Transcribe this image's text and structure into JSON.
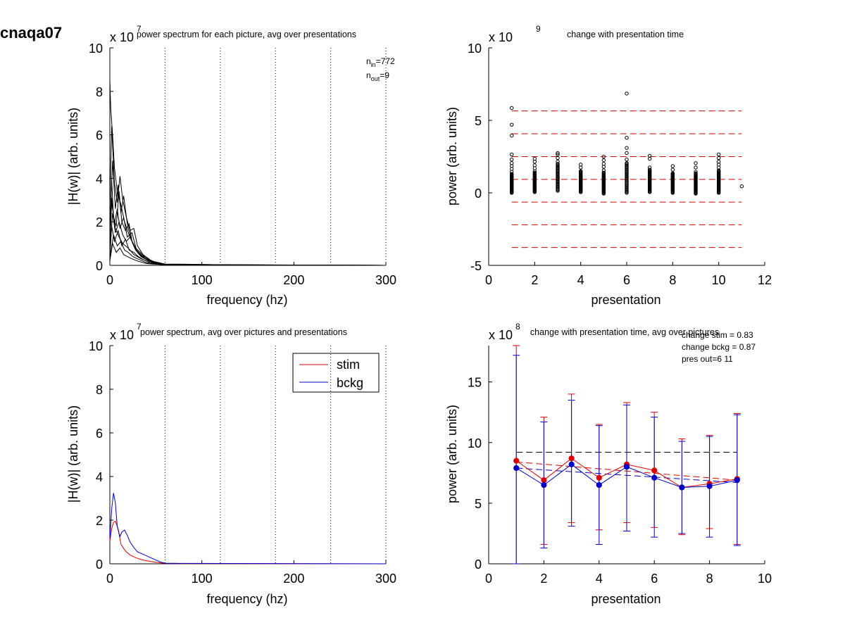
{
  "figure_title": "cnaqa07",
  "chart_data": [
    {
      "id": "p1",
      "type": "line",
      "title": "power spectrum for each picture, avg over presentations",
      "xlabel": "frequency (hz)",
      "ylabel": "|H(w)| (arb. units)",
      "exponent_base": "x 10",
      "exponent_power": "7",
      "xlim": [
        0,
        300
      ],
      "ylim": [
        0,
        10
      ],
      "xticks": [
        "0",
        "100",
        "200",
        "300"
      ],
      "yticks": [
        "0",
        "2",
        "4",
        "6",
        "8",
        "10"
      ],
      "vlines": [
        60,
        120,
        180,
        240,
        300
      ],
      "annotation": {
        "n_in": "772",
        "n_out": "9"
      },
      "note": "many overlapping traces (one per picture); peaks mostly 1-4 x10^7 below 20 Hz, max about 8.5 x10^7 near 3 Hz, decaying to ~0 by 60 Hz",
      "series": [
        {
          "color": "#000000",
          "x": [
            0,
            1,
            3,
            5,
            8,
            12,
            16,
            20,
            25,
            30,
            40,
            50,
            60,
            80,
            100,
            120,
            160,
            200,
            250,
            300
          ],
          "y": [
            8.5,
            7.2,
            6.0,
            4.5,
            3.4,
            2.8,
            2.0,
            1.5,
            1.0,
            0.6,
            0.25,
            0.12,
            0.05,
            0.03,
            0.03,
            0.02,
            0.01,
            0,
            0,
            0
          ]
        },
        {
          "color": "#000000",
          "x": [
            0,
            2,
            5,
            8,
            11,
            14,
            18,
            22,
            26,
            30,
            36,
            44,
            52,
            60,
            100,
            150,
            300
          ],
          "y": [
            2.6,
            6.4,
            3.8,
            2.9,
            4.1,
            3.0,
            2.2,
            1.6,
            1.7,
            0.9,
            0.5,
            0.25,
            0.1,
            0.04,
            0.04,
            0.01,
            0
          ]
        },
        {
          "color": "#000000",
          "x": [
            0,
            3,
            6,
            9,
            12,
            15,
            19,
            23,
            28,
            33,
            40,
            50,
            60,
            100,
            300
          ],
          "y": [
            1.8,
            4.8,
            2.6,
            3.7,
            2.4,
            3.2,
            1.9,
            1.2,
            0.8,
            0.6,
            0.3,
            0.1,
            0.05,
            0.03,
            0
          ]
        },
        {
          "color": "#000000",
          "x": [
            0,
            2,
            4,
            7,
            10,
            13,
            17,
            21,
            24,
            28,
            34,
            42,
            50,
            60,
            300
          ],
          "y": [
            1.2,
            3.9,
            2.2,
            1.8,
            3.4,
            2.0,
            1.6,
            1.9,
            1.1,
            0.7,
            0.4,
            0.2,
            0.08,
            0.03,
            0
          ]
        },
        {
          "color": "#000000",
          "x": [
            0,
            2,
            5,
            8,
            11,
            15,
            19,
            24,
            29,
            35,
            45,
            60,
            90,
            130,
            300
          ],
          "y": [
            0.8,
            3.1,
            1.9,
            2.6,
            1.7,
            2.2,
            1.3,
            1.5,
            0.7,
            0.45,
            0.2,
            0.06,
            0.05,
            0.02,
            0
          ]
        },
        {
          "color": "#000000",
          "x": [
            0,
            3,
            6,
            10,
            14,
            18,
            22,
            27,
            32,
            38,
            46,
            60,
            300
          ],
          "y": [
            0.6,
            2.4,
            1.5,
            2.0,
            1.4,
            1.1,
            1.3,
            0.8,
            0.5,
            0.3,
            0.15,
            0.04,
            0
          ]
        },
        {
          "color": "#000000",
          "x": [
            0,
            2,
            5,
            9,
            13,
            17,
            21,
            26,
            31,
            37,
            45,
            60,
            300
          ],
          "y": [
            0.4,
            1.8,
            1.1,
            1.6,
            0.9,
            1.2,
            0.7,
            0.6,
            0.4,
            0.25,
            0.1,
            0.03,
            0
          ]
        },
        {
          "color": "#000000",
          "x": [
            0,
            4,
            8,
            12,
            16,
            20,
            25,
            30,
            40,
            60,
            300
          ],
          "y": [
            0.3,
            1.4,
            0.9,
            1.1,
            0.7,
            0.6,
            0.4,
            0.3,
            0.12,
            0.02,
            0
          ]
        },
        {
          "color": "#000000",
          "x": [
            0,
            3,
            7,
            11,
            15,
            19,
            24,
            30,
            40,
            60,
            300
          ],
          "y": [
            0.2,
            1.0,
            0.6,
            0.8,
            0.5,
            0.4,
            0.3,
            0.2,
            0.08,
            0.02,
            0
          ]
        },
        {
          "color": "#000000",
          "x": [
            0,
            2,
            6,
            10,
            14,
            20,
            26,
            34,
            44,
            60,
            300
          ],
          "y": [
            1.0,
            2.9,
            1.7,
            1.3,
            1.0,
            0.8,
            0.5,
            0.3,
            0.12,
            0.03,
            0
          ]
        }
      ]
    },
    {
      "id": "p2",
      "type": "scatter",
      "title": "change with presentation time",
      "xlabel": "presentation",
      "ylabel": "power (arb. units)",
      "exponent_base": "x 10",
      "exponent_power": "9",
      "xlim": [
        0,
        12
      ],
      "ylim": [
        -5,
        10
      ],
      "xticks": [
        "0",
        "2",
        "4",
        "6",
        "8",
        "10",
        "12"
      ],
      "yticks": [
        "-5",
        "0",
        "5",
        "10"
      ],
      "hlines": {
        "color": "#cc0000",
        "xrange": [
          1,
          11
        ],
        "y": [
          5.65,
          4.08,
          2.5,
          0.93,
          -0.64,
          -2.2,
          -3.77
        ]
      },
      "points": [
        {
          "x": 1,
          "y": [
            5.85,
            4.7,
            3.95,
            2.65,
            2.3,
            2.05,
            1.85,
            1.65,
            1.45,
            1.3
          ]
        },
        {
          "x": 2,
          "y": [
            2.35,
            2.15,
            1.9,
            1.7,
            1.5
          ]
        },
        {
          "x": 3,
          "y": [
            2.75,
            2.65,
            2.4,
            2.15
          ]
        },
        {
          "x": 4,
          "y": [
            1.95,
            1.75
          ]
        },
        {
          "x": 5,
          "y": [
            2.5,
            2.25,
            2.0,
            1.8,
            1.55
          ]
        },
        {
          "x": 6,
          "y": [
            6.85,
            3.8,
            3.1,
            2.75,
            2.3,
            2.05
          ]
        },
        {
          "x": 7,
          "y": [
            2.55,
            2.35,
            1.75
          ]
        },
        {
          "x": 8,
          "y": [
            1.85,
            1.6,
            1.35
          ]
        },
        {
          "x": 9,
          "y": [
            2.05,
            1.75,
            1.45
          ]
        },
        {
          "x": 10,
          "y": [
            2.65,
            2.4,
            2.15,
            1.95,
            1.75,
            1.55
          ]
        },
        {
          "x": 11,
          "y": [
            0.45
          ]
        }
      ],
      "dense_columns": [
        {
          "x": 1,
          "low": 0,
          "high": 1.3
        },
        {
          "x": 2,
          "low": 0.05,
          "high": 1.4
        },
        {
          "x": 3,
          "low": 0.15,
          "high": 2.0
        },
        {
          "x": 4,
          "low": 0.05,
          "high": 1.5
        },
        {
          "x": 5,
          "low": -0.05,
          "high": 1.4
        },
        {
          "x": 6,
          "low": 0.0,
          "high": 2.0
        },
        {
          "x": 7,
          "low": 0.05,
          "high": 1.6
        },
        {
          "x": 8,
          "low": 0.0,
          "high": 1.3
        },
        {
          "x": 9,
          "low": -0.05,
          "high": 1.35
        },
        {
          "x": 10,
          "low": 0.0,
          "high": 1.5
        }
      ]
    },
    {
      "id": "p3",
      "type": "line",
      "title": "power spectrum, avg over pictures and presentations",
      "xlabel": "frequency (hz)",
      "ylabel": "|H(w)| (arb. units)",
      "exponent_base": "x 10",
      "exponent_power": "7",
      "xlim": [
        0,
        300
      ],
      "ylim": [
        0,
        10
      ],
      "xticks": [
        "0",
        "100",
        "200",
        "300"
      ],
      "yticks": [
        "0",
        "2",
        "4",
        "6",
        "8",
        "10"
      ],
      "vlines": [
        60,
        120,
        180,
        240,
        300
      ],
      "legend": {
        "placement": "top-right",
        "entries": [
          "stim",
          "bckg"
        ]
      },
      "series": [
        {
          "name": "stim",
          "color": "#dd0000",
          "x": [
            0,
            2,
            4,
            6,
            9,
            12,
            15,
            18,
            22,
            28,
            35,
            45,
            55,
            60,
            80,
            300
          ],
          "y": [
            1.05,
            1.6,
            1.9,
            1.95,
            1.6,
            0.9,
            0.7,
            0.55,
            0.4,
            0.28,
            0.18,
            0.1,
            0.04,
            0.02,
            0.01,
            0
          ]
        },
        {
          "name": "bckg",
          "color": "#0000cc",
          "x": [
            0,
            2,
            4,
            6,
            8,
            11,
            13,
            16,
            19,
            22,
            26,
            30,
            38,
            46,
            55,
            60,
            80,
            300
          ],
          "y": [
            1.15,
            2.5,
            3.25,
            2.8,
            1.7,
            1.25,
            1.45,
            1.55,
            1.3,
            1.0,
            0.75,
            0.55,
            0.4,
            0.25,
            0.08,
            0.03,
            0.02,
            0
          ]
        }
      ]
    },
    {
      "id": "p4",
      "type": "line",
      "title": "change with presentation time, avg over pictures",
      "xlabel": "presentation",
      "ylabel": "power (arb. units)",
      "exponent_base": "x 10",
      "exponent_power": "8",
      "xlim": [
        0,
        10
      ],
      "ylim": [
        0,
        18
      ],
      "xticks": [
        "0",
        "2",
        "4",
        "6",
        "8",
        "10"
      ],
      "yticks": [
        "0",
        "5",
        "10",
        "15"
      ],
      "annotations": [
        "change stim = 0.83",
        "change bckg = 0.87",
        "pres out=6 11"
      ],
      "reference_line": {
        "y": 9.2,
        "color": "#000000",
        "xrange": [
          1,
          9
        ]
      },
      "series": [
        {
          "name": "stim",
          "color": "#dd0000",
          "x": [
            1,
            2,
            3,
            4,
            5,
            6,
            7,
            8,
            9
          ],
          "y": [
            8.5,
            6.9,
            8.7,
            7.1,
            8.2,
            7.7,
            6.3,
            6.6,
            7.0
          ],
          "err_low": [
            0.0,
            1.6,
            3.4,
            2.8,
            3.4,
            3.0,
            2.4,
            2.9,
            1.6
          ],
          "err_high": [
            18.0,
            12.1,
            14.0,
            11.5,
            13.3,
            12.5,
            10.3,
            10.6,
            12.4
          ],
          "trend": [
            8.4,
            6.9
          ]
        },
        {
          "name": "bckg",
          "color": "#0000cc",
          "x": [
            1,
            2,
            3,
            4,
            5,
            6,
            7,
            8,
            9
          ],
          "y": [
            7.9,
            6.5,
            8.2,
            6.5,
            8.0,
            7.1,
            6.3,
            6.4,
            6.9
          ],
          "err_low": [
            0.0,
            1.3,
            3.1,
            1.6,
            2.7,
            2.2,
            2.5,
            2.2,
            1.5
          ],
          "err_high": [
            17.2,
            11.7,
            13.5,
            11.4,
            13.1,
            12.1,
            10.1,
            10.5,
            12.3
          ],
          "trend": [
            7.9,
            6.7
          ]
        }
      ]
    }
  ]
}
